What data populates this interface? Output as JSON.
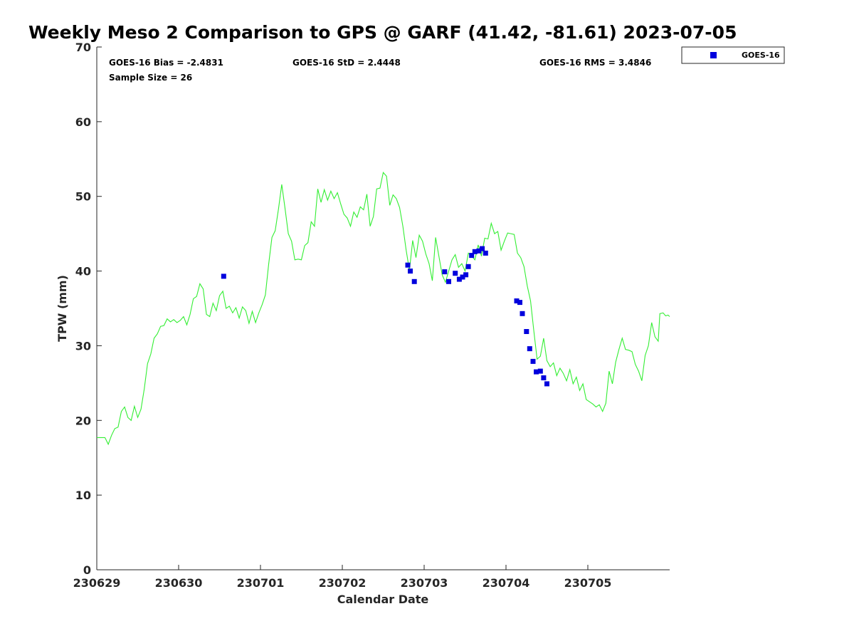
{
  "chart_data": {
    "type": "line",
    "title": "Weekly Meso 2 Comparison to GPS @ GARF (41.42, -81.61) 2023-07-05",
    "xlabel": "Calendar Date",
    "ylabel": "TPW (mm)",
    "xlim": [
      0,
      7
    ],
    "ylim": [
      0,
      70
    ],
    "x_ticks": [
      0,
      1,
      2,
      3,
      4,
      5,
      6
    ],
    "x_tick_labels": [
      "230629",
      "230630",
      "230701",
      "230702",
      "230703",
      "230704",
      "230705"
    ],
    "y_ticks": [
      0,
      10,
      20,
      30,
      40,
      50,
      60,
      70
    ],
    "y_tick_labels": [
      "0",
      "10",
      "20",
      "30",
      "40",
      "50",
      "60",
      "70"
    ],
    "grid": false,
    "legend_position": "outside-top-right",
    "stats": {
      "bias": "GOES-16 Bias = -2.4831",
      "std": "GOES-16 StD = 2.4448",
      "rms": "GOES-16 RMS = 3.4846",
      "sample_size": "Sample Size = 26"
    },
    "gps_color": "#33ee33",
    "series": [
      {
        "name": "GOES-16",
        "marker": "square",
        "color": "#0000dd",
        "points": [
          [
            1.55,
            39.3
          ],
          [
            3.8,
            40.8
          ],
          [
            3.83,
            40.0
          ],
          [
            3.88,
            38.6
          ],
          [
            4.25,
            39.9
          ],
          [
            4.3,
            38.6
          ],
          [
            4.38,
            39.7
          ],
          [
            4.43,
            38.9
          ],
          [
            4.47,
            39.2
          ],
          [
            4.51,
            39.5
          ],
          [
            4.54,
            40.6
          ],
          [
            4.58,
            42.1
          ],
          [
            4.62,
            42.6
          ],
          [
            4.67,
            42.7
          ],
          [
            4.71,
            43.0
          ],
          [
            4.75,
            42.4
          ],
          [
            5.13,
            36.0
          ],
          [
            5.17,
            35.8
          ],
          [
            5.2,
            34.3
          ],
          [
            5.25,
            31.9
          ],
          [
            5.29,
            29.6
          ],
          [
            5.33,
            27.9
          ],
          [
            5.37,
            26.5
          ],
          [
            5.42,
            26.6
          ],
          [
            5.46,
            25.7
          ],
          [
            5.5,
            24.9
          ]
        ]
      }
    ],
    "gps_line": [
      [
        0.0,
        17.7
      ],
      [
        0.1,
        17.7
      ],
      [
        0.14,
        16.8
      ],
      [
        0.18,
        18.0
      ],
      [
        0.22,
        18.9
      ],
      [
        0.26,
        19.1
      ],
      [
        0.3,
        21.2
      ],
      [
        0.34,
        21.8
      ],
      [
        0.38,
        20.4
      ],
      [
        0.42,
        20.0
      ],
      [
        0.46,
        21.9
      ],
      [
        0.5,
        20.4
      ],
      [
        0.54,
        21.5
      ],
      [
        0.58,
        24.2
      ],
      [
        0.62,
        27.6
      ],
      [
        0.66,
        28.9
      ],
      [
        0.7,
        31.0
      ],
      [
        0.74,
        31.6
      ],
      [
        0.78,
        32.6
      ],
      [
        0.82,
        32.7
      ],
      [
        0.86,
        33.6
      ],
      [
        0.9,
        33.2
      ],
      [
        0.94,
        33.5
      ],
      [
        0.98,
        33.1
      ],
      [
        1.02,
        33.4
      ],
      [
        1.06,
        33.9
      ],
      [
        1.1,
        32.8
      ],
      [
        1.14,
        34.2
      ],
      [
        1.18,
        36.3
      ],
      [
        1.22,
        36.6
      ],
      [
        1.26,
        38.3
      ],
      [
        1.3,
        37.6
      ],
      [
        1.34,
        34.2
      ],
      [
        1.38,
        33.9
      ],
      [
        1.42,
        35.7
      ],
      [
        1.46,
        34.7
      ],
      [
        1.5,
        36.7
      ],
      [
        1.54,
        37.3
      ],
      [
        1.58,
        35.0
      ],
      [
        1.62,
        35.3
      ],
      [
        1.66,
        34.4
      ],
      [
        1.7,
        35.1
      ],
      [
        1.74,
        33.7
      ],
      [
        1.78,
        35.2
      ],
      [
        1.82,
        34.7
      ],
      [
        1.86,
        33.0
      ],
      [
        1.9,
        34.6
      ],
      [
        1.94,
        33.1
      ],
      [
        1.98,
        34.4
      ],
      [
        2.02,
        35.5
      ],
      [
        2.06,
        36.8
      ],
      [
        2.1,
        40.9
      ],
      [
        2.14,
        44.5
      ],
      [
        2.18,
        45.4
      ],
      [
        2.22,
        48.3
      ],
      [
        2.26,
        51.6
      ],
      [
        2.3,
        48.4
      ],
      [
        2.34,
        45.0
      ],
      [
        2.38,
        44.0
      ],
      [
        2.42,
        41.5
      ],
      [
        2.46,
        41.6
      ],
      [
        2.5,
        41.5
      ],
      [
        2.54,
        43.4
      ],
      [
        2.58,
        43.8
      ],
      [
        2.62,
        46.6
      ],
      [
        2.66,
        46.0
      ],
      [
        2.7,
        51.0
      ],
      [
        2.74,
        49.2
      ],
      [
        2.78,
        50.9
      ],
      [
        2.82,
        49.5
      ],
      [
        2.86,
        50.7
      ],
      [
        2.9,
        49.7
      ],
      [
        2.94,
        50.5
      ],
      [
        2.98,
        49.0
      ],
      [
        3.02,
        47.6
      ],
      [
        3.06,
        47.1
      ],
      [
        3.1,
        46.0
      ],
      [
        3.14,
        47.9
      ],
      [
        3.18,
        47.2
      ],
      [
        3.22,
        48.6
      ],
      [
        3.26,
        48.2
      ],
      [
        3.3,
        50.3
      ],
      [
        3.34,
        46.0
      ],
      [
        3.38,
        47.3
      ],
      [
        3.42,
        51.0
      ],
      [
        3.46,
        51.1
      ],
      [
        3.5,
        53.2
      ],
      [
        3.54,
        52.7
      ],
      [
        3.58,
        48.8
      ],
      [
        3.62,
        50.2
      ],
      [
        3.66,
        49.7
      ],
      [
        3.7,
        48.5
      ],
      [
        3.74,
        46.0
      ],
      [
        3.78,
        42.8
      ],
      [
        3.82,
        40.1
      ],
      [
        3.86,
        44.1
      ],
      [
        3.9,
        41.8
      ],
      [
        3.94,
        44.8
      ],
      [
        3.98,
        44.0
      ],
      [
        4.02,
        42.3
      ],
      [
        4.06,
        41.0
      ],
      [
        4.1,
        38.7
      ],
      [
        4.14,
        44.5
      ],
      [
        4.18,
        42.0
      ],
      [
        4.22,
        39.5
      ],
      [
        4.26,
        38.5
      ],
      [
        4.3,
        40.0
      ],
      [
        4.34,
        41.5
      ],
      [
        4.38,
        42.2
      ],
      [
        4.42,
        40.5
      ],
      [
        4.46,
        41.0
      ],
      [
        4.5,
        40.0
      ],
      [
        4.54,
        42.4
      ],
      [
        4.58,
        42.0
      ],
      [
        4.62,
        41.5
      ],
      [
        4.66,
        43.5
      ],
      [
        4.7,
        42.0
      ],
      [
        4.74,
        44.4
      ],
      [
        4.78,
        44.3
      ],
      [
        4.82,
        46.4
      ],
      [
        4.86,
        45.0
      ],
      [
        4.9,
        45.3
      ],
      [
        4.94,
        42.8
      ],
      [
        4.98,
        44.0
      ],
      [
        5.02,
        45.1
      ],
      [
        5.06,
        45.0
      ],
      [
        5.1,
        44.9
      ],
      [
        5.14,
        42.4
      ],
      [
        5.18,
        41.8
      ],
      [
        5.22,
        40.6
      ],
      [
        5.26,
        38.0
      ],
      [
        5.3,
        36.0
      ],
      [
        5.34,
        32.0
      ],
      [
        5.38,
        28.2
      ],
      [
        5.42,
        28.6
      ],
      [
        5.46,
        31.0
      ],
      [
        5.5,
        28.0
      ],
      [
        5.54,
        27.2
      ],
      [
        5.58,
        27.7
      ],
      [
        5.62,
        26.0
      ],
      [
        5.66,
        27.0
      ],
      [
        5.7,
        26.3
      ],
      [
        5.74,
        25.3
      ],
      [
        5.78,
        26.8
      ],
      [
        5.82,
        24.9
      ],
      [
        5.86,
        25.8
      ],
      [
        5.9,
        24.0
      ],
      [
        5.94,
        24.9
      ],
      [
        5.98,
        22.8
      ],
      [
        6.02,
        22.5
      ],
      [
        6.06,
        22.2
      ],
      [
        6.1,
        21.8
      ],
      [
        6.14,
        22.1
      ],
      [
        6.18,
        21.2
      ],
      [
        6.22,
        22.3
      ],
      [
        6.26,
        26.6
      ],
      [
        6.3,
        24.9
      ],
      [
        6.34,
        27.8
      ],
      [
        6.38,
        29.5
      ],
      [
        6.42,
        31.0
      ],
      [
        6.46,
        29.5
      ],
      [
        6.5,
        29.4
      ],
      [
        6.54,
        29.2
      ],
      [
        6.58,
        27.5
      ],
      [
        6.62,
        26.6
      ],
      [
        6.66,
        25.3
      ],
      [
        6.7,
        28.7
      ],
      [
        6.74,
        30.0
      ],
      [
        6.78,
        33.1
      ],
      [
        6.82,
        31.2
      ],
      [
        6.86,
        30.6
      ],
      [
        6.88,
        34.3
      ],
      [
        6.92,
        34.4
      ],
      [
        6.95,
        34.0
      ],
      [
        6.98,
        34.1
      ],
      [
        7.0,
        33.9
      ]
    ]
  },
  "legend": {
    "label": "GOES-16"
  }
}
